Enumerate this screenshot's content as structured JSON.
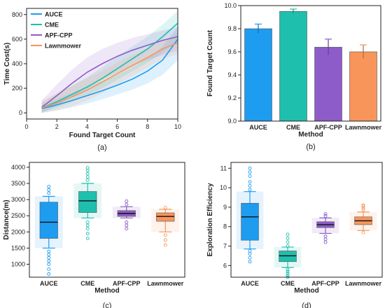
{
  "colors": {
    "AUCE": "#1e9cf0",
    "CME": "#1fbfae",
    "APF-CPP": "#8e5cc9",
    "Lawnmower": "#f7955b"
  },
  "chart_data": [
    {
      "type": "line",
      "panel_label": "(a)",
      "xlabel": "Found Target Count",
      "ylabel": "Time Cost(s)",
      "xlim": [
        0,
        10
      ],
      "ylim": [
        -50,
        850
      ],
      "xticks": [
        0,
        2,
        4,
        6,
        8,
        10
      ],
      "yticks": [
        0,
        200,
        400,
        600,
        800
      ],
      "legend": "top-left",
      "grid": false,
      "x": [
        1,
        2,
        3,
        4,
        5,
        6,
        7,
        8,
        9,
        10
      ],
      "series": [
        {
          "name": "AUCE",
          "values": [
            35,
            65,
            100,
            140,
            180,
            225,
            275,
            340,
            430,
            600
          ],
          "band_low": [
            0,
            20,
            45,
            75,
            110,
            150,
            190,
            240,
            310,
            430
          ],
          "band_high": [
            70,
            110,
            160,
            210,
            260,
            310,
            370,
            440,
            540,
            700
          ]
        },
        {
          "name": "CME",
          "values": [
            40,
            90,
            150,
            210,
            280,
            360,
            440,
            520,
            620,
            730
          ],
          "band_low": [
            5,
            40,
            90,
            140,
            200,
            270,
            340,
            410,
            490,
            580
          ],
          "band_high": [
            85,
            150,
            220,
            290,
            370,
            460,
            540,
            620,
            720,
            830
          ]
        },
        {
          "name": "APF-CPP",
          "values": [
            45,
            140,
            240,
            330,
            400,
            460,
            510,
            550,
            590,
            620
          ],
          "band_low": [
            0,
            60,
            130,
            200,
            270,
            330,
            380,
            430,
            470,
            510
          ],
          "band_high": [
            100,
            230,
            350,
            450,
            520,
            570,
            610,
            640,
            670,
            700
          ]
        },
        {
          "name": "Lawnmower",
          "values": [
            40,
            80,
            130,
            185,
            250,
            320,
            385,
            450,
            520,
            570
          ],
          "band_low": [
            0,
            20,
            55,
            100,
            160,
            230,
            300,
            370,
            440,
            480
          ],
          "band_high": [
            100,
            160,
            220,
            280,
            340,
            410,
            470,
            530,
            590,
            650
          ]
        }
      ]
    },
    {
      "type": "bar",
      "panel_label": "(b)",
      "xlabel": "Method",
      "ylabel": "Found Target Count",
      "categories": [
        "AUCE",
        "CME",
        "APF-CPP",
        "Lawnmower"
      ],
      "values": [
        9.8,
        9.95,
        9.64,
        9.6
      ],
      "errors": [
        0.04,
        0.02,
        0.07,
        0.06
      ],
      "ylim": [
        9.0,
        10.0
      ],
      "yticks": [
        9.0,
        9.2,
        9.4,
        9.6,
        9.8,
        10.0
      ],
      "grid": false
    },
    {
      "type": "box",
      "panel_label": "(c)",
      "xlabel": "Method",
      "ylabel": "Distance(m)",
      "categories": [
        "AUCE",
        "CME",
        "APF-CPP",
        "Lawnmower"
      ],
      "ylim": [
        600,
        4150
      ],
      "yticks": [
        1000,
        1500,
        2000,
        2500,
        3000,
        3500,
        4000
      ],
      "grid": false,
      "boxes": [
        {
          "whisker_low": 1500,
          "q1": 1800,
          "median": 2300,
          "q3": 2920,
          "whisker_high": 3100,
          "outliers": [
            700,
            850,
            1000,
            1100,
            1200,
            1300,
            1400,
            3200,
            3300,
            3400
          ]
        },
        {
          "whisker_low": 2430,
          "q1": 2600,
          "median": 2960,
          "q3": 3250,
          "whisker_high": 3500,
          "outliers": [
            1800,
            1950,
            2100,
            2200,
            2300,
            3600,
            3700,
            3800,
            3900,
            3980
          ]
        },
        {
          "whisker_low": 2430,
          "q1": 2480,
          "median": 2570,
          "q3": 2660,
          "whisker_high": 2780,
          "outliers": [
            2100,
            2200,
            2300,
            2850,
            2950
          ]
        },
        {
          "whisker_low": 2000,
          "q1": 2330,
          "median": 2480,
          "q3": 2590,
          "whisker_high": 2700,
          "outliers": [
            1600,
            1750,
            1900,
            2750
          ]
        }
      ]
    },
    {
      "type": "box",
      "panel_label": "(d)",
      "xlabel": "Method",
      "ylabel": "Exploration Efficiency",
      "categories": [
        "AUCE",
        "CME",
        "APF-CPP",
        "Lawnmower"
      ],
      "ylim": [
        5.4,
        11.3
      ],
      "yticks": [
        6,
        7,
        8,
        9,
        10,
        11
      ],
      "grid": false,
      "boxes": [
        {
          "whisker_low": 6.85,
          "q1": 7.3,
          "median": 8.5,
          "q3": 9.2,
          "whisker_high": 9.8,
          "outliers": [
            6.2,
            6.4,
            6.6,
            6.75,
            9.9,
            10.1,
            10.3,
            10.6,
            10.8,
            11.0
          ]
        },
        {
          "whisker_low": 5.9,
          "q1": 6.2,
          "median": 6.5,
          "q3": 6.75,
          "whisker_high": 6.95,
          "outliers": [
            5.4,
            5.5,
            5.6,
            5.7,
            5.8,
            7.0,
            7.2,
            7.4,
            7.6
          ]
        },
        {
          "whisker_low": 7.65,
          "q1": 7.95,
          "median": 8.1,
          "q3": 8.25,
          "whisker_high": 8.45,
          "outliers": [
            7.2,
            7.35,
            7.5,
            8.55,
            8.65
          ]
        },
        {
          "whisker_low": 7.8,
          "q1": 8.1,
          "median": 8.3,
          "q3": 8.5,
          "whisker_high": 8.75,
          "outliers": [
            7.7,
            8.85,
            8.95,
            9.05,
            9.1
          ]
        }
      ]
    }
  ]
}
